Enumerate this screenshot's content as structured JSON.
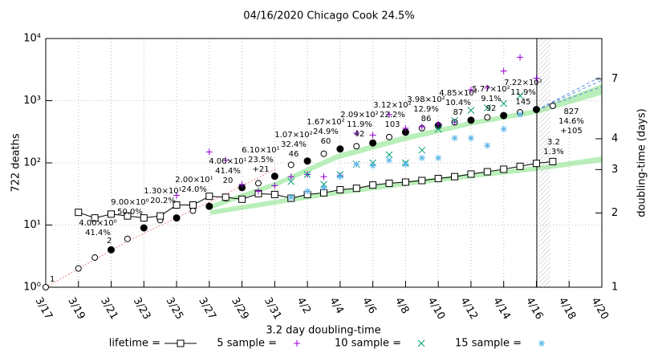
{
  "chart_data": {
    "type": "scatter",
    "title": "04/16/2020 Chicago Cook 24.5%",
    "y_label": "722 deaths",
    "y2_label": "doubling-time (days)",
    "x_label": "3.2 day doubling-time",
    "log_y": true,
    "log_y2": true,
    "grid": true,
    "xlim": [
      "3/17",
      "4/20"
    ],
    "xticks": [
      "3/17",
      "3/19",
      "3/21",
      "3/23",
      "3/25",
      "3/27",
      "3/29",
      "3/31",
      "4/2",
      "4/4",
      "4/6",
      "4/8",
      "4/10",
      "4/12",
      "4/14",
      "4/16",
      "4/18",
      "4/20"
    ],
    "ylim": [
      1,
      10000
    ],
    "yticks": [
      {
        "value": 1,
        "label": "10⁰"
      },
      {
        "value": 10,
        "label": "10¹"
      },
      {
        "value": 100,
        "label": "10²"
      },
      {
        "value": 1000,
        "label": "10³"
      },
      {
        "value": 10000,
        "label": "10⁴"
      }
    ],
    "y2lim": [
      1,
      10.2
    ],
    "y2ticks": [
      1,
      2,
      3,
      4,
      7
    ],
    "x": [
      "3/17",
      "3/18",
      "3/19",
      "3/20",
      "3/21",
      "3/22",
      "3/23",
      "3/24",
      "3/25",
      "3/26",
      "3/27",
      "3/28",
      "3/29",
      "3/30",
      "3/31",
      "4/1",
      "4/2",
      "4/3",
      "4/4",
      "4/5",
      "4/6",
      "4/7",
      "4/8",
      "4/9",
      "4/10",
      "4/11",
      "4/12",
      "4/13",
      "4/14",
      "4/15",
      "4/16",
      "4/17"
    ],
    "deaths": {
      "color": "#000000",
      "values": [
        1,
        null,
        2,
        3,
        4,
        6,
        9,
        12,
        13,
        17,
        20,
        27,
        40,
        47,
        61,
        93,
        107,
        140,
        167,
        185,
        209,
        260,
        312,
        360,
        398,
        450,
        485,
        540,
        577,
        650,
        722,
        827
      ],
      "filled": [
        false,
        false,
        false,
        false,
        true,
        false,
        true,
        false,
        true,
        false,
        true,
        false,
        true,
        false,
        true,
        false,
        true,
        false,
        true,
        false,
        true,
        false,
        true,
        false,
        true,
        false,
        true,
        false,
        true,
        false,
        true,
        false
      ]
    },
    "series": [
      {
        "name": "lifetime =",
        "marker": "square",
        "color": "#000000",
        "values": [
          null,
          null,
          16,
          13,
          15,
          14,
          13,
          14,
          21,
          21,
          29,
          28,
          26,
          32,
          31,
          27,
          31,
          33,
          37,
          39,
          44,
          47,
          49,
          52,
          56,
          60,
          66,
          72,
          79,
          88,
          98,
          105
        ]
      },
      {
        "name": "5 sample =",
        "marker": "plus",
        "color": "#9400d3",
        "values": [
          null,
          null,
          null,
          null,
          null,
          null,
          null,
          null,
          30,
          null,
          150,
          110,
          45,
          35,
          43,
          60,
          65,
          60,
          62,
          300,
          280,
          600,
          360,
          380,
          420,
          450,
          1500,
          1600,
          3000,
          5000,
          2300,
          null
        ]
      },
      {
        "name": "10 sample =",
        "marker": "cross",
        "color": "#009e73",
        "values": [
          null,
          null,
          null,
          null,
          null,
          null,
          null,
          null,
          null,
          null,
          null,
          null,
          null,
          null,
          null,
          50,
          65,
          45,
          65,
          95,
          100,
          135,
          100,
          160,
          350,
          480,
          700,
          770,
          900,
          1200,
          null,
          null
        ]
      },
      {
        "name": "15 sample =",
        "marker": "star",
        "color": "#56b4e9",
        "values": [
          null,
          null,
          null,
          null,
          null,
          null,
          null,
          null,
          null,
          null,
          null,
          null,
          null,
          null,
          null,
          28,
          35,
          40,
          60,
          95,
          90,
          110,
          95,
          120,
          120,
          250,
          250,
          190,
          350,
          600,
          null,
          null
        ]
      }
    ],
    "annotations": [
      [
        "1"
      ],
      [
        "2"
      ],
      [
        "4.00×10⁰",
        "41.4%"
      ],
      [
        "9.00×10⁰",
        "50.0%"
      ],
      [
        "1.30×10¹",
        "20.2%"
      ],
      [
        "2.00×10¹",
        "24.0%"
      ],
      [
        "4.00×10¹",
        "41.4%",
        "20"
      ],
      [
        "6.10×10¹",
        "23.5%",
        "+21"
      ],
      [
        "1.07×10²",
        "32.4%",
        "46"
      ],
      [
        "1.67×10²",
        "24.9%",
        "60"
      ],
      [
        "2.09×10²",
        "11.9%",
        "42"
      ],
      [
        "3.12×10²",
        "22.2%",
        "103"
      ],
      [
        "3.98×10²",
        "12.9%",
        "86"
      ],
      [
        "4.85×10²",
        "10.4%",
        "87"
      ],
      [
        "5.77×10²",
        "9.1%",
        "92"
      ],
      [
        "7.22×10²",
        "11.9%",
        "145"
      ],
      [
        "827",
        "14.6%",
        "+105"
      ],
      [
        "3.2",
        "1.3%"
      ]
    ]
  }
}
